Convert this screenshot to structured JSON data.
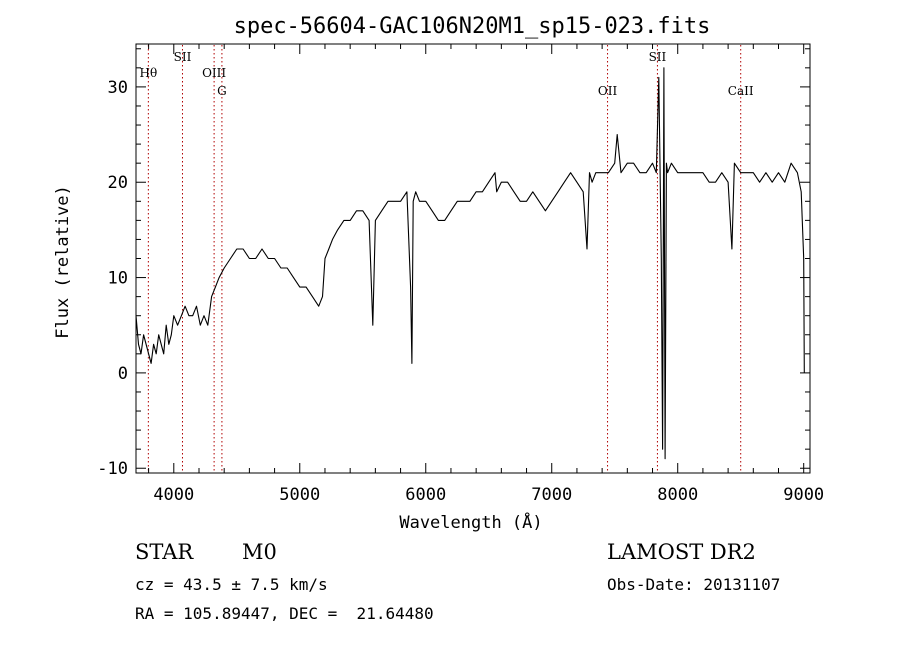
{
  "chart_data": {
    "type": "line",
    "title": "spec-56604-GAC106N20M1_sp15-023.fits",
    "xlabel": "Wavelength (Å)",
    "ylabel": "Flux (relative)",
    "xlim": [
      3700,
      9050
    ],
    "ylim": [
      -10.5,
      34.5
    ],
    "xticks": [
      4000,
      5000,
      6000,
      7000,
      8000,
      9000
    ],
    "yticks": [
      -10,
      0,
      10,
      20,
      30
    ],
    "grid": false,
    "series": [
      {
        "x": [
          3700,
          3720,
          3740,
          3760,
          3780,
          3800,
          3820,
          3840,
          3860,
          3880,
          3900,
          3920,
          3940,
          3960,
          3980,
          4000,
          4030,
          4060,
          4090,
          4120,
          4150,
          4180,
          4210,
          4240,
          4270,
          4300,
          4330,
          4360,
          4400,
          4450,
          4500,
          4550,
          4600,
          4650,
          4700,
          4750,
          4800,
          4850,
          4900,
          4950,
          5000,
          5050,
          5100,
          5150,
          5180,
          5200,
          5230,
          5260,
          5300,
          5350,
          5400,
          5450,
          5500,
          5550,
          5580,
          5600,
          5650,
          5700,
          5750,
          5800,
          5850,
          5880,
          5890,
          5900,
          5920,
          5950,
          6000,
          6050,
          6100,
          6150,
          6200,
          6250,
          6300,
          6350,
          6400,
          6450,
          6500,
          6550,
          6563,
          6600,
          6650,
          6700,
          6750,
          6800,
          6850,
          6900,
          6950,
          7000,
          7050,
          7100,
          7150,
          7200,
          7250,
          7280,
          7300,
          7320,
          7350,
          7400,
          7450,
          7500,
          7520,
          7550,
          7600,
          7650,
          7700,
          7750,
          7800,
          7830,
          7850,
          7870,
          7880,
          7890,
          7900,
          7910,
          7920,
          7950,
          8000,
          8050,
          8100,
          8150,
          8200,
          8250,
          8300,
          8350,
          8400,
          8430,
          8450,
          8500,
          8550,
          8600,
          8650,
          8700,
          8750,
          8800,
          8850,
          8900,
          8950,
          8980,
          9000,
          9005
        ],
        "y": [
          6,
          3,
          2,
          4,
          3,
          2,
          1,
          3,
          2,
          4,
          3,
          2,
          5,
          3,
          4,
          6,
          5,
          6,
          7,
          6,
          6,
          7,
          5,
          6,
          5,
          8,
          9,
          10,
          11,
          12,
          13,
          13,
          12,
          12,
          13,
          12,
          12,
          11,
          11,
          10,
          9,
          9,
          8,
          7,
          8,
          12,
          13,
          14,
          15,
          16,
          16,
          17,
          17,
          16,
          5,
          16,
          17,
          18,
          18,
          18,
          19,
          9,
          1,
          18,
          19,
          18,
          18,
          17,
          16,
          16,
          17,
          18,
          18,
          18,
          19,
          19,
          20,
          21,
          19,
          20,
          20,
          19,
          18,
          18,
          19,
          18,
          17,
          18,
          19,
          20,
          21,
          20,
          19,
          13,
          21,
          20,
          21,
          21,
          21,
          22,
          25,
          21,
          22,
          22,
          21,
          21,
          22,
          21,
          31,
          12,
          -8,
          32,
          -9,
          22,
          21,
          22,
          21,
          21,
          21,
          21,
          21,
          20,
          20,
          21,
          20,
          13,
          22,
          21,
          21,
          21,
          20,
          21,
          20,
          21,
          20,
          22,
          21,
          19,
          12,
          0
        ]
      }
    ],
    "line_markers": [
      {
        "label": "Hθ",
        "wavelength": 3798,
        "row": 1
      },
      {
        "label": "SII",
        "wavelength": 4069,
        "row": 0
      },
      {
        "label": "OIII",
        "wavelength": 4320,
        "row": 1
      },
      {
        "label": "G",
        "wavelength": 4382,
        "row": 2
      },
      {
        "label": "OII",
        "wavelength": 7443,
        "row": 2
      },
      {
        "label": "SII",
        "wavelength": 7839,
        "row": 0
      },
      {
        "label": "CaII",
        "wavelength": 8500,
        "row": 2
      }
    ]
  },
  "info": {
    "object_class": "STAR",
    "subclass": "M0",
    "survey": "LAMOST DR2",
    "cz": "cz = 43.5 ± 7.5 km/s",
    "obs_date": "Obs-Date: 20131107",
    "coords": "RA = 105.89447, DEC =  21.64480"
  }
}
